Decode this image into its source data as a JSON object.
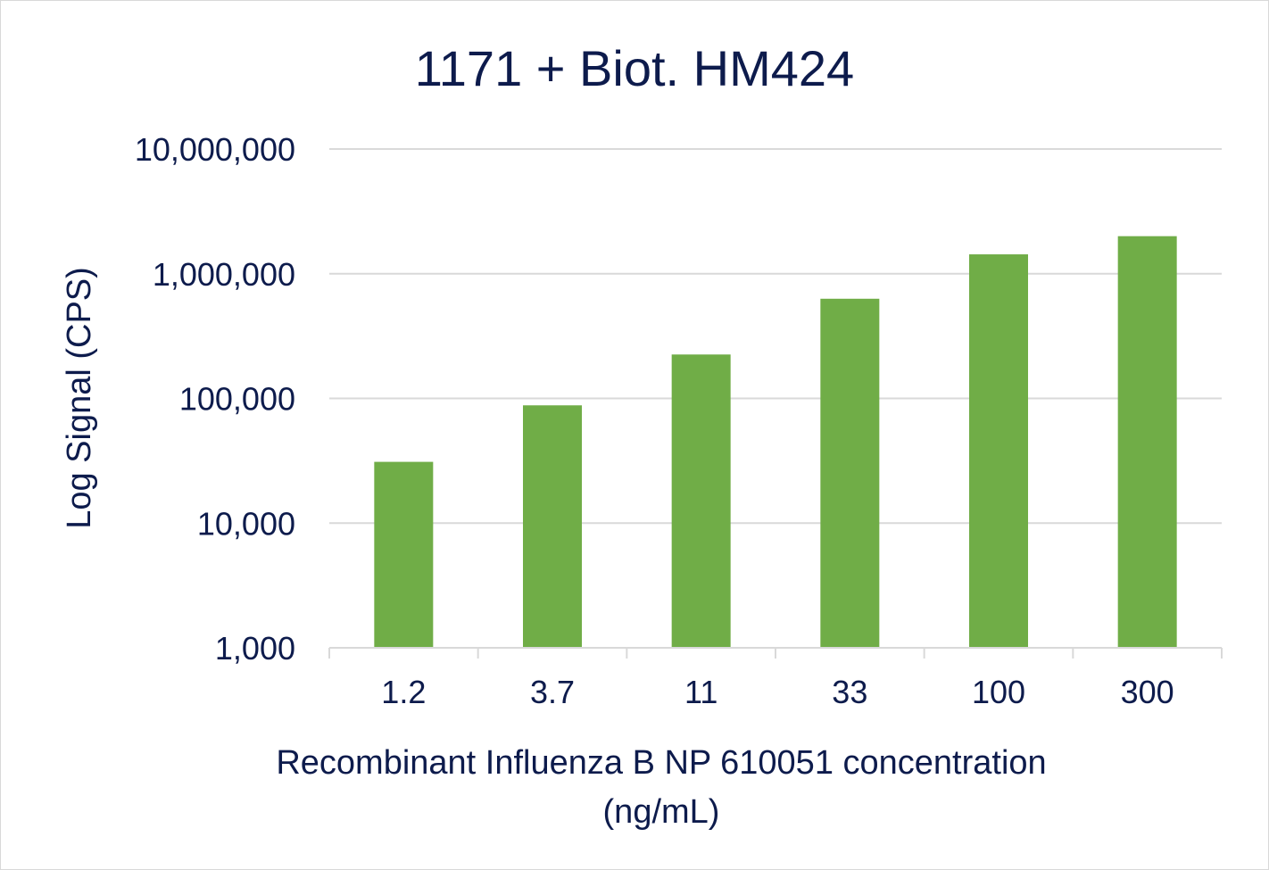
{
  "chart_data": {
    "type": "bar",
    "title": "1171 + Biot. HM424",
    "xlabel_lines": [
      "Recombinant Influenza B NP 610051 concentration",
      "(ng/mL)"
    ],
    "ylabel": "Log Signal (CPS)",
    "categories": [
      "1.2",
      "3.7",
      "11",
      "33",
      "100",
      "300"
    ],
    "values": [
      31000,
      88000,
      225000,
      630000,
      1430000,
      2000000
    ],
    "y_scale": "log",
    "ylim": [
      1000,
      10000000
    ],
    "y_ticks": [
      {
        "value": 1000,
        "label": "1,000"
      },
      {
        "value": 10000,
        "label": "10,000"
      },
      {
        "value": 100000,
        "label": "100,000"
      },
      {
        "value": 1000000,
        "label": "1,000,000"
      },
      {
        "value": 10000000,
        "label": "10,000,000"
      }
    ],
    "grid": true,
    "legend": "none",
    "colors": {
      "bar": "#70ad47",
      "text": "#0d1b4c",
      "grid": "#d9d9d9",
      "axis": "#d9d9d9"
    }
  }
}
